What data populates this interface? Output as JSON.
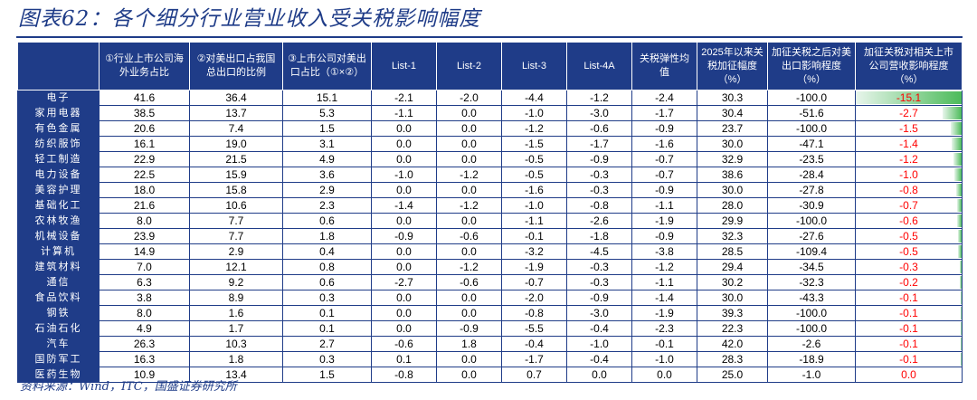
{
  "title": "图表62：各个细分行业营业收入受关税影响幅度",
  "source": "资料来源：Wind，ITC，国盛证券研究所",
  "columns": [
    "",
    "①行业上市公司海外业务占比",
    "②对美出口占我国总出口的比例",
    "③上市公司对美出口占比（①×②）",
    "List-1",
    "List-2",
    "List-3",
    "List-4A",
    "关税弹性均值",
    "2025年以来关税加征幅度（%）",
    "加征关税之后对美出口影响程度（%）",
    "加征关税对相关上市公司营收影响程度（%）"
  ],
  "rows": [
    {
      "industry": "电子",
      "c1": "41.6",
      "c2": "36.4",
      "c3": "15.1",
      "l1": "-2.1",
      "l2": "-2.0",
      "l3": "-4.4",
      "l4": "-1.2",
      "el": "-2.4",
      "tariff": "30.3",
      "export": "-100.0",
      "impact": "-15.1"
    },
    {
      "industry": "家用电器",
      "c1": "38.5",
      "c2": "13.7",
      "c3": "5.3",
      "l1": "-1.1",
      "l2": "0.0",
      "l3": "-1.0",
      "l4": "-3.0",
      "el": "-1.7",
      "tariff": "30.4",
      "export": "-51.6",
      "impact": "-2.7"
    },
    {
      "industry": "有色金属",
      "c1": "20.6",
      "c2": "7.4",
      "c3": "1.5",
      "l1": "0.0",
      "l2": "0.0",
      "l3": "-1.2",
      "l4": "-0.6",
      "el": "-0.9",
      "tariff": "23.7",
      "export": "-100.0",
      "impact": "-1.5"
    },
    {
      "industry": "纺织服饰",
      "c1": "16.1",
      "c2": "19.0",
      "c3": "3.1",
      "l1": "0.0",
      "l2": "0.0",
      "l3": "-1.5",
      "l4": "-1.7",
      "el": "-1.6",
      "tariff": "30.0",
      "export": "-47.1",
      "impact": "-1.4"
    },
    {
      "industry": "轻工制造",
      "c1": "22.9",
      "c2": "21.5",
      "c3": "4.9",
      "l1": "0.0",
      "l2": "0.0",
      "l3": "-0.5",
      "l4": "-0.9",
      "el": "-0.7",
      "tariff": "32.9",
      "export": "-23.5",
      "impact": "-1.2"
    },
    {
      "industry": "电力设备",
      "c1": "22.5",
      "c2": "15.9",
      "c3": "3.6",
      "l1": "-1.0",
      "l2": "-1.2",
      "l3": "-0.5",
      "l4": "-0.3",
      "el": "-0.7",
      "tariff": "38.6",
      "export": "-28.4",
      "impact": "-1.0"
    },
    {
      "industry": "美容护理",
      "c1": "18.0",
      "c2": "15.8",
      "c3": "2.9",
      "l1": "0.0",
      "l2": "0.0",
      "l3": "-1.6",
      "l4": "-0.3",
      "el": "-0.9",
      "tariff": "30.0",
      "export": "-27.8",
      "impact": "-0.8"
    },
    {
      "industry": "基础化工",
      "c1": "21.6",
      "c2": "10.6",
      "c3": "2.3",
      "l1": "-1.4",
      "l2": "-1.2",
      "l3": "-1.0",
      "l4": "-0.8",
      "el": "-1.1",
      "tariff": "28.0",
      "export": "-30.9",
      "impact": "-0.7"
    },
    {
      "industry": "农林牧渔",
      "c1": "8.0",
      "c2": "7.7",
      "c3": "0.6",
      "l1": "0.0",
      "l2": "0.0",
      "l3": "-1.1",
      "l4": "-2.6",
      "el": "-1.9",
      "tariff": "29.9",
      "export": "-100.0",
      "impact": "-0.6"
    },
    {
      "industry": "机械设备",
      "c1": "23.9",
      "c2": "7.7",
      "c3": "1.8",
      "l1": "-0.9",
      "l2": "-0.6",
      "l3": "-0.1",
      "l4": "-1.8",
      "el": "-0.9",
      "tariff": "32.3",
      "export": "-27.6",
      "impact": "-0.5"
    },
    {
      "industry": "计算机",
      "c1": "14.9",
      "c2": "2.9",
      "c3": "0.4",
      "l1": "0.0",
      "l2": "0.0",
      "l3": "-3.2",
      "l4": "-4.5",
      "el": "-3.8",
      "tariff": "28.5",
      "export": "-109.4",
      "impact": "-0.5"
    },
    {
      "industry": "建筑材料",
      "c1": "7.0",
      "c2": "12.1",
      "c3": "0.8",
      "l1": "0.0",
      "l2": "-1.2",
      "l3": "-1.9",
      "l4": "-0.3",
      "el": "-1.2",
      "tariff": "29.4",
      "export": "-34.5",
      "impact": "-0.3"
    },
    {
      "industry": "通信",
      "c1": "6.3",
      "c2": "9.2",
      "c3": "0.6",
      "l1": "-2.7",
      "l2": "-0.6",
      "l3": "-0.7",
      "l4": "-0.3",
      "el": "-1.1",
      "tariff": "30.2",
      "export": "-32.3",
      "impact": "-0.2"
    },
    {
      "industry": "食品饮料",
      "c1": "3.8",
      "c2": "8.9",
      "c3": "0.3",
      "l1": "0.0",
      "l2": "0.0",
      "l3": "-2.0",
      "l4": "-0.9",
      "el": "-1.4",
      "tariff": "30.0",
      "export": "-43.3",
      "impact": "-0.1"
    },
    {
      "industry": "钢铁",
      "c1": "8.0",
      "c2": "1.6",
      "c3": "0.1",
      "l1": "0.0",
      "l2": "0.0",
      "l3": "-0.8",
      "l4": "-3.0",
      "el": "-1.9",
      "tariff": "39.3",
      "export": "-100.0",
      "impact": "-0.1"
    },
    {
      "industry": "石油石化",
      "c1": "4.9",
      "c2": "1.7",
      "c3": "0.1",
      "l1": "0.0",
      "l2": "-0.9",
      "l3": "-5.5",
      "l4": "-0.4",
      "el": "-2.3",
      "tariff": "22.3",
      "export": "-100.0",
      "impact": "-0.1"
    },
    {
      "industry": "汽车",
      "c1": "26.3",
      "c2": "10.3",
      "c3": "2.7",
      "l1": "-0.6",
      "l2": "1.8",
      "l3": "-0.4",
      "l4": "-1.0",
      "el": "-0.1",
      "tariff": "42.0",
      "export": "-2.6",
      "impact": "-0.1"
    },
    {
      "industry": "国防军工",
      "c1": "16.3",
      "c2": "1.8",
      "c3": "0.3",
      "l1": "0.1",
      "l2": "0.0",
      "l3": "-1.7",
      "l4": "-0.4",
      "el": "-1.0",
      "tariff": "28.3",
      "export": "-18.9",
      "impact": "-0.1"
    },
    {
      "industry": "医药生物",
      "c1": "10.9",
      "c2": "13.4",
      "c3": "1.5",
      "l1": "-0.8",
      "l2": "0.0",
      "l3": "0.7",
      "l4": "0.0",
      "el": "0.0",
      "tariff": "25.0",
      "export": "-1.0",
      "impact": "0.0"
    }
  ],
  "colors": {
    "header_bg": "#1f3c88",
    "impact_text": "#ff0000",
    "bar": "#4cbb5a"
  }
}
